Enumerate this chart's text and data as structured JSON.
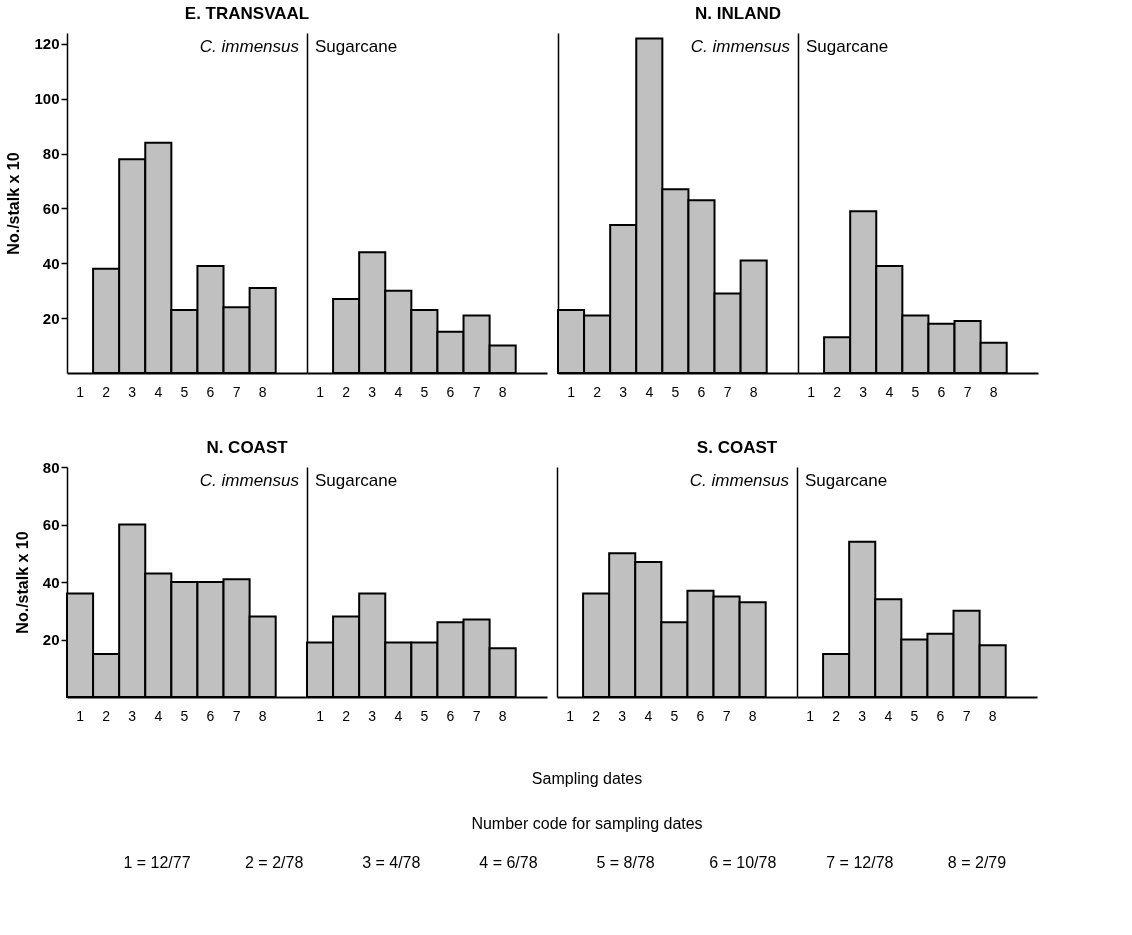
{
  "chart_data": [
    {
      "type": "bar",
      "title": "E. TRANSVAAL",
      "subtitle": "C. immensus",
      "ylabel": "No./stalk x 10",
      "categories": [
        "1",
        "2",
        "3",
        "4",
        "5",
        "6",
        "7",
        "8"
      ],
      "values": [
        null,
        38,
        78,
        84,
        23,
        39,
        24,
        31
      ],
      "color": "#c0c0c0",
      "ylim": [
        0,
        124
      ],
      "yticks": [
        20,
        40,
        60,
        80,
        100,
        120
      ]
    },
    {
      "type": "bar",
      "subtitle": "Sugarcane",
      "categories": [
        "1",
        "2",
        "3",
        "4",
        "5",
        "6",
        "7",
        "8"
      ],
      "values": [
        null,
        27,
        44,
        30,
        23,
        15,
        21,
        10
      ],
      "color": "#c0c0c0",
      "ylim": [
        0,
        124
      ],
      "yticks": [
        20,
        40,
        60,
        80,
        100,
        120
      ],
      "tick_labels": "x"
    },
    {
      "type": "bar",
      "title": "N. INLAND",
      "subtitle": "C. immensus",
      "categories": [
        "1",
        "2",
        "3",
        "4",
        "5",
        "6",
        "7",
        "8"
      ],
      "values": [
        23,
        21,
        54,
        122,
        67,
        63,
        29,
        41
      ],
      "color": "#c0c0c0",
      "ylim": [
        0,
        124
      ],
      "yticks": [
        20,
        40,
        60,
        80,
        100,
        120
      ],
      "tick_labels": "x"
    },
    {
      "type": "bar",
      "subtitle": "Sugarcane",
      "categories": [
        "1",
        "2",
        "3",
        "4",
        "5",
        "6",
        "7",
        "8"
      ],
      "values": [
        null,
        13,
        59,
        39,
        21,
        18,
        19,
        11
      ],
      "color": "#c0c0c0",
      "ylim": [
        0,
        124
      ],
      "yticks": [
        20,
        40,
        60,
        80,
        100,
        120
      ],
      "tick_labels": "x"
    },
    {
      "type": "bar",
      "title": "N. COAST",
      "subtitle": "C. immensus",
      "ylabel": "No./stalk x 10",
      "categories": [
        "1",
        "2",
        "3",
        "4",
        "5",
        "6",
        "7",
        "8"
      ],
      "values": [
        36,
        15,
        60,
        43,
        40,
        40,
        41,
        28
      ],
      "color": "#c0c0c0",
      "ylim": [
        0,
        80
      ],
      "yticks": [
        20,
        40,
        60,
        80
      ]
    },
    {
      "type": "bar",
      "subtitle": "Sugarcane",
      "categories": [
        "1",
        "2",
        "3",
        "4",
        "5",
        "6",
        "7",
        "8"
      ],
      "values": [
        19,
        28,
        36,
        19,
        19,
        26,
        27,
        17
      ],
      "color": "#c0c0c0",
      "ylim": [
        0,
        80
      ],
      "yticks": [
        20,
        40,
        60,
        80
      ],
      "tick_labels": "x"
    },
    {
      "type": "bar",
      "title": "S. COAST",
      "subtitle": "C. immensus",
      "categories": [
        "1",
        "2",
        "3",
        "4",
        "5",
        "6",
        "7",
        "8"
      ],
      "values": [
        null,
        36,
        50,
        47,
        26,
        37,
        35,
        33
      ],
      "color": "#c0c0c0",
      "ylim": [
        0,
        80
      ],
      "yticks": [
        20,
        40,
        60,
        80
      ],
      "tick_labels": "x"
    },
    {
      "type": "bar",
      "subtitle": "Sugarcane",
      "categories": [
        "1",
        "2",
        "3",
        "4",
        "5",
        "6",
        "7",
        "8"
      ],
      "values": [
        null,
        15,
        54,
        34,
        20,
        22,
        30,
        18
      ],
      "color": "#c0c0c0",
      "ylim": [
        0,
        80
      ],
      "yticks": [
        20,
        40,
        60,
        80
      ],
      "tick_labels": "x",
      "annotations": [
        "Sampling dates",
        "Number code for sampling dates",
        "1 = 12/77",
        "2 = 2/78",
        "3 = 4/78",
        "4 = 6/78",
        "5 = 8/78",
        "6 = 10/78",
        "7 = 12/78",
        "8 = 2/79"
      ]
    }
  ]
}
